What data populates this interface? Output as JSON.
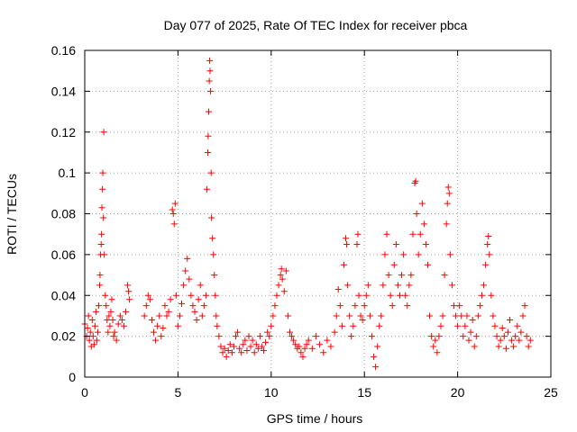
{
  "chart_data": {
    "type": "scatter",
    "title": "Day 077 of 2025, Rate Of TEC Index for receiver pbca",
    "xlabel": "GPS time / hours",
    "ylabel": "ROTI / TECUs",
    "xlim": [
      0,
      25
    ],
    "ylim": [
      0,
      0.16
    ],
    "xticks": [
      0,
      5,
      10,
      15,
      20,
      25
    ],
    "yticks": [
      0,
      0.02,
      0.04,
      0.06,
      0.08,
      0.1,
      0.12,
      0.14,
      0.16
    ],
    "grid": true,
    "marker": "+",
    "color": "#ff0000",
    "points": [
      [
        0.0,
        0.026
      ],
      [
        0.1,
        0.02
      ],
      [
        0.15,
        0.024
      ],
      [
        0.2,
        0.03
      ],
      [
        0.25,
        0.018
      ],
      [
        0.3,
        0.022
      ],
      [
        0.35,
        0.015
      ],
      [
        0.4,
        0.028
      ],
      [
        0.45,
        0.02
      ],
      [
        0.5,
        0.016
      ],
      [
        0.55,
        0.025
      ],
      [
        0.6,
        0.032
      ],
      [
        0.65,
        0.018
      ],
      [
        0.7,
        0.022
      ],
      [
        0.75,
        0.035
      ],
      [
        0.8,
        0.045
      ],
      [
        0.82,
        0.05
      ],
      [
        0.85,
        0.06
      ],
      [
        0.88,
        0.065
      ],
      [
        0.9,
        0.07
      ],
      [
        0.92,
        0.083
      ],
      [
        0.95,
        0.092
      ],
      [
        0.97,
        0.1
      ],
      [
        1.0,
        0.078
      ],
      [
        1.02,
        0.12
      ],
      [
        1.05,
        0.06
      ],
      [
        1.1,
        0.04
      ],
      [
        1.15,
        0.035
      ],
      [
        1.2,
        0.028
      ],
      [
        1.25,
        0.022
      ],
      [
        1.3,
        0.03
      ],
      [
        1.35,
        0.025
      ],
      [
        1.4,
        0.032
      ],
      [
        1.45,
        0.038
      ],
      [
        1.5,
        0.028
      ],
      [
        1.55,
        0.02
      ],
      [
        1.6,
        0.022
      ],
      [
        1.7,
        0.018
      ],
      [
        1.8,
        0.026
      ],
      [
        1.9,
        0.03
      ],
      [
        2.0,
        0.028
      ],
      [
        2.1,
        0.025
      ],
      [
        2.2,
        0.032
      ],
      [
        2.3,
        0.045
      ],
      [
        2.35,
        0.042
      ],
      [
        2.4,
        0.038
      ],
      [
        3.2,
        0.03
      ],
      [
        3.3,
        0.035
      ],
      [
        3.4,
        0.04
      ],
      [
        3.5,
        0.038
      ],
      [
        3.6,
        0.028
      ],
      [
        3.7,
        0.022
      ],
      [
        3.8,
        0.018
      ],
      [
        3.9,
        0.025
      ],
      [
        4.0,
        0.03
      ],
      [
        4.1,
        0.02
      ],
      [
        4.2,
        0.024
      ],
      [
        4.3,
        0.035
      ],
      [
        4.4,
        0.03
      ],
      [
        4.5,
        0.032
      ],
      [
        4.6,
        0.038
      ],
      [
        4.7,
        0.082
      ],
      [
        4.75,
        0.08
      ],
      [
        4.8,
        0.075
      ],
      [
        4.85,
        0.085
      ],
      [
        4.9,
        0.04
      ],
      [
        5.0,
        0.025
      ],
      [
        5.1,
        0.03
      ],
      [
        5.2,
        0.036
      ],
      [
        5.3,
        0.045
      ],
      [
        5.4,
        0.052
      ],
      [
        5.5,
        0.058
      ],
      [
        5.6,
        0.048
      ],
      [
        5.7,
        0.04
      ],
      [
        5.8,
        0.035
      ],
      [
        5.9,
        0.032
      ],
      [
        6.0,
        0.028
      ],
      [
        6.1,
        0.038
      ],
      [
        6.2,
        0.045
      ],
      [
        6.3,
        0.03
      ],
      [
        6.4,
        0.035
      ],
      [
        6.5,
        0.04
      ],
      [
        6.55,
        0.092
      ],
      [
        6.6,
        0.11
      ],
      [
        6.62,
        0.118
      ],
      [
        6.65,
        0.13
      ],
      [
        6.68,
        0.145
      ],
      [
        6.7,
        0.155
      ],
      [
        6.72,
        0.15
      ],
      [
        6.75,
        0.14
      ],
      [
        6.78,
        0.1
      ],
      [
        6.8,
        0.078
      ],
      [
        6.85,
        0.068
      ],
      [
        6.9,
        0.06
      ],
      [
        6.95,
        0.05
      ],
      [
        7.0,
        0.04
      ],
      [
        7.05,
        0.03
      ],
      [
        7.1,
        0.025
      ],
      [
        7.2,
        0.02
      ],
      [
        7.3,
        0.015
      ],
      [
        7.4,
        0.012
      ],
      [
        7.5,
        0.014
      ],
      [
        7.6,
        0.01
      ],
      [
        7.7,
        0.013
      ],
      [
        7.8,
        0.016
      ],
      [
        7.9,
        0.012
      ],
      [
        8.0,
        0.015
      ],
      [
        8.1,
        0.02
      ],
      [
        8.2,
        0.022
      ],
      [
        8.3,
        0.014
      ],
      [
        8.4,
        0.012
      ],
      [
        8.5,
        0.016
      ],
      [
        8.6,
        0.018
      ],
      [
        8.7,
        0.013
      ],
      [
        8.8,
        0.02
      ],
      [
        8.9,
        0.015
      ],
      [
        9.0,
        0.018
      ],
      [
        9.1,
        0.012
      ],
      [
        9.2,
        0.016
      ],
      [
        9.3,
        0.014
      ],
      [
        9.4,
        0.02
      ],
      [
        9.5,
        0.015
      ],
      [
        9.6,
        0.013
      ],
      [
        9.7,
        0.017
      ],
      [
        9.8,
        0.022
      ],
      [
        9.9,
        0.02
      ],
      [
        10.0,
        0.025
      ],
      [
        10.1,
        0.03
      ],
      [
        10.2,
        0.035
      ],
      [
        10.3,
        0.04
      ],
      [
        10.4,
        0.045
      ],
      [
        10.5,
        0.05
      ],
      [
        10.55,
        0.053
      ],
      [
        10.6,
        0.048
      ],
      [
        10.7,
        0.042
      ],
      [
        10.8,
        0.052
      ],
      [
        10.9,
        0.03
      ],
      [
        11.0,
        0.022
      ],
      [
        11.1,
        0.02
      ],
      [
        11.2,
        0.018
      ],
      [
        11.3,
        0.016
      ],
      [
        11.4,
        0.014
      ],
      [
        11.5,
        0.015
      ],
      [
        11.6,
        0.012
      ],
      [
        11.7,
        0.01
      ],
      [
        11.8,
        0.014
      ],
      [
        11.9,
        0.016
      ],
      [
        12.0,
        0.018
      ],
      [
        12.2,
        0.014
      ],
      [
        12.4,
        0.02
      ],
      [
        12.6,
        0.016
      ],
      [
        12.8,
        0.012
      ],
      [
        13.0,
        0.018
      ],
      [
        13.2,
        0.015
      ],
      [
        13.4,
        0.022
      ],
      [
        13.5,
        0.03
      ],
      [
        13.6,
        0.043
      ],
      [
        13.7,
        0.035
      ],
      [
        13.8,
        0.025
      ],
      [
        13.9,
        0.055
      ],
      [
        14.0,
        0.068
      ],
      [
        14.05,
        0.065
      ],
      [
        14.1,
        0.045
      ],
      [
        14.2,
        0.03
      ],
      [
        14.3,
        0.02
      ],
      [
        14.4,
        0.025
      ],
      [
        14.5,
        0.035
      ],
      [
        14.6,
        0.065
      ],
      [
        14.65,
        0.07
      ],
      [
        14.7,
        0.04
      ],
      [
        14.8,
        0.03
      ],
      [
        14.9,
        0.028
      ],
      [
        15.0,
        0.035
      ],
      [
        15.1,
        0.04
      ],
      [
        15.2,
        0.045
      ],
      [
        15.3,
        0.03
      ],
      [
        15.4,
        0.02
      ],
      [
        15.5,
        0.01
      ],
      [
        15.6,
        0.005
      ],
      [
        15.7,
        0.015
      ],
      [
        15.8,
        0.025
      ],
      [
        15.9,
        0.03
      ],
      [
        16.0,
        0.045
      ],
      [
        16.1,
        0.06
      ],
      [
        16.2,
        0.07
      ],
      [
        16.3,
        0.05
      ],
      [
        16.4,
        0.04
      ],
      [
        16.5,
        0.035
      ],
      [
        16.6,
        0.055
      ],
      [
        16.7,
        0.065
      ],
      [
        16.8,
        0.045
      ],
      [
        16.9,
        0.04
      ],
      [
        17.0,
        0.05
      ],
      [
        17.1,
        0.06
      ],
      [
        17.2,
        0.04
      ],
      [
        17.3,
        0.035
      ],
      [
        17.4,
        0.045
      ],
      [
        17.5,
        0.05
      ],
      [
        17.6,
        0.07
      ],
      [
        17.7,
        0.095
      ],
      [
        17.75,
        0.096
      ],
      [
        17.8,
        0.08
      ],
      [
        17.9,
        0.06
      ],
      [
        18.0,
        0.07
      ],
      [
        18.1,
        0.085
      ],
      [
        18.2,
        0.075
      ],
      [
        18.3,
        0.065
      ],
      [
        18.4,
        0.055
      ],
      [
        18.5,
        0.03
      ],
      [
        18.6,
        0.02
      ],
      [
        18.7,
        0.015
      ],
      [
        18.8,
        0.018
      ],
      [
        18.9,
        0.012
      ],
      [
        19.0,
        0.02
      ],
      [
        19.1,
        0.025
      ],
      [
        19.2,
        0.03
      ],
      [
        19.3,
        0.05
      ],
      [
        19.4,
        0.075
      ],
      [
        19.45,
        0.085
      ],
      [
        19.5,
        0.093
      ],
      [
        19.55,
        0.09
      ],
      [
        19.6,
        0.06
      ],
      [
        19.7,
        0.045
      ],
      [
        19.8,
        0.035
      ],
      [
        19.9,
        0.03
      ],
      [
        20.0,
        0.025
      ],
      [
        20.1,
        0.035
      ],
      [
        20.2,
        0.03
      ],
      [
        20.3,
        0.02
      ],
      [
        20.4,
        0.025
      ],
      [
        20.5,
        0.03
      ],
      [
        20.6,
        0.018
      ],
      [
        20.7,
        0.022
      ],
      [
        20.8,
        0.028
      ],
      [
        20.9,
        0.015
      ],
      [
        21.0,
        0.02
      ],
      [
        21.1,
        0.03
      ],
      [
        21.2,
        0.035
      ],
      [
        21.3,
        0.04
      ],
      [
        21.4,
        0.045
      ],
      [
        21.5,
        0.055
      ],
      [
        21.6,
        0.065
      ],
      [
        21.65,
        0.069
      ],
      [
        21.7,
        0.06
      ],
      [
        21.8,
        0.04
      ],
      [
        21.9,
        0.03
      ],
      [
        22.0,
        0.025
      ],
      [
        22.1,
        0.02
      ],
      [
        22.2,
        0.015
      ],
      [
        22.3,
        0.018
      ],
      [
        22.4,
        0.024
      ],
      [
        22.5,
        0.02
      ],
      [
        22.6,
        0.014
      ],
      [
        22.7,
        0.022
      ],
      [
        22.8,
        0.028
      ],
      [
        22.9,
        0.018
      ],
      [
        23.0,
        0.015
      ],
      [
        23.1,
        0.02
      ],
      [
        23.2,
        0.025
      ],
      [
        23.3,
        0.018
      ],
      [
        23.4,
        0.022
      ],
      [
        23.5,
        0.03
      ],
      [
        23.6,
        0.035
      ],
      [
        23.7,
        0.02
      ],
      [
        23.8,
        0.015
      ],
      [
        23.9,
        0.018
      ]
    ]
  }
}
